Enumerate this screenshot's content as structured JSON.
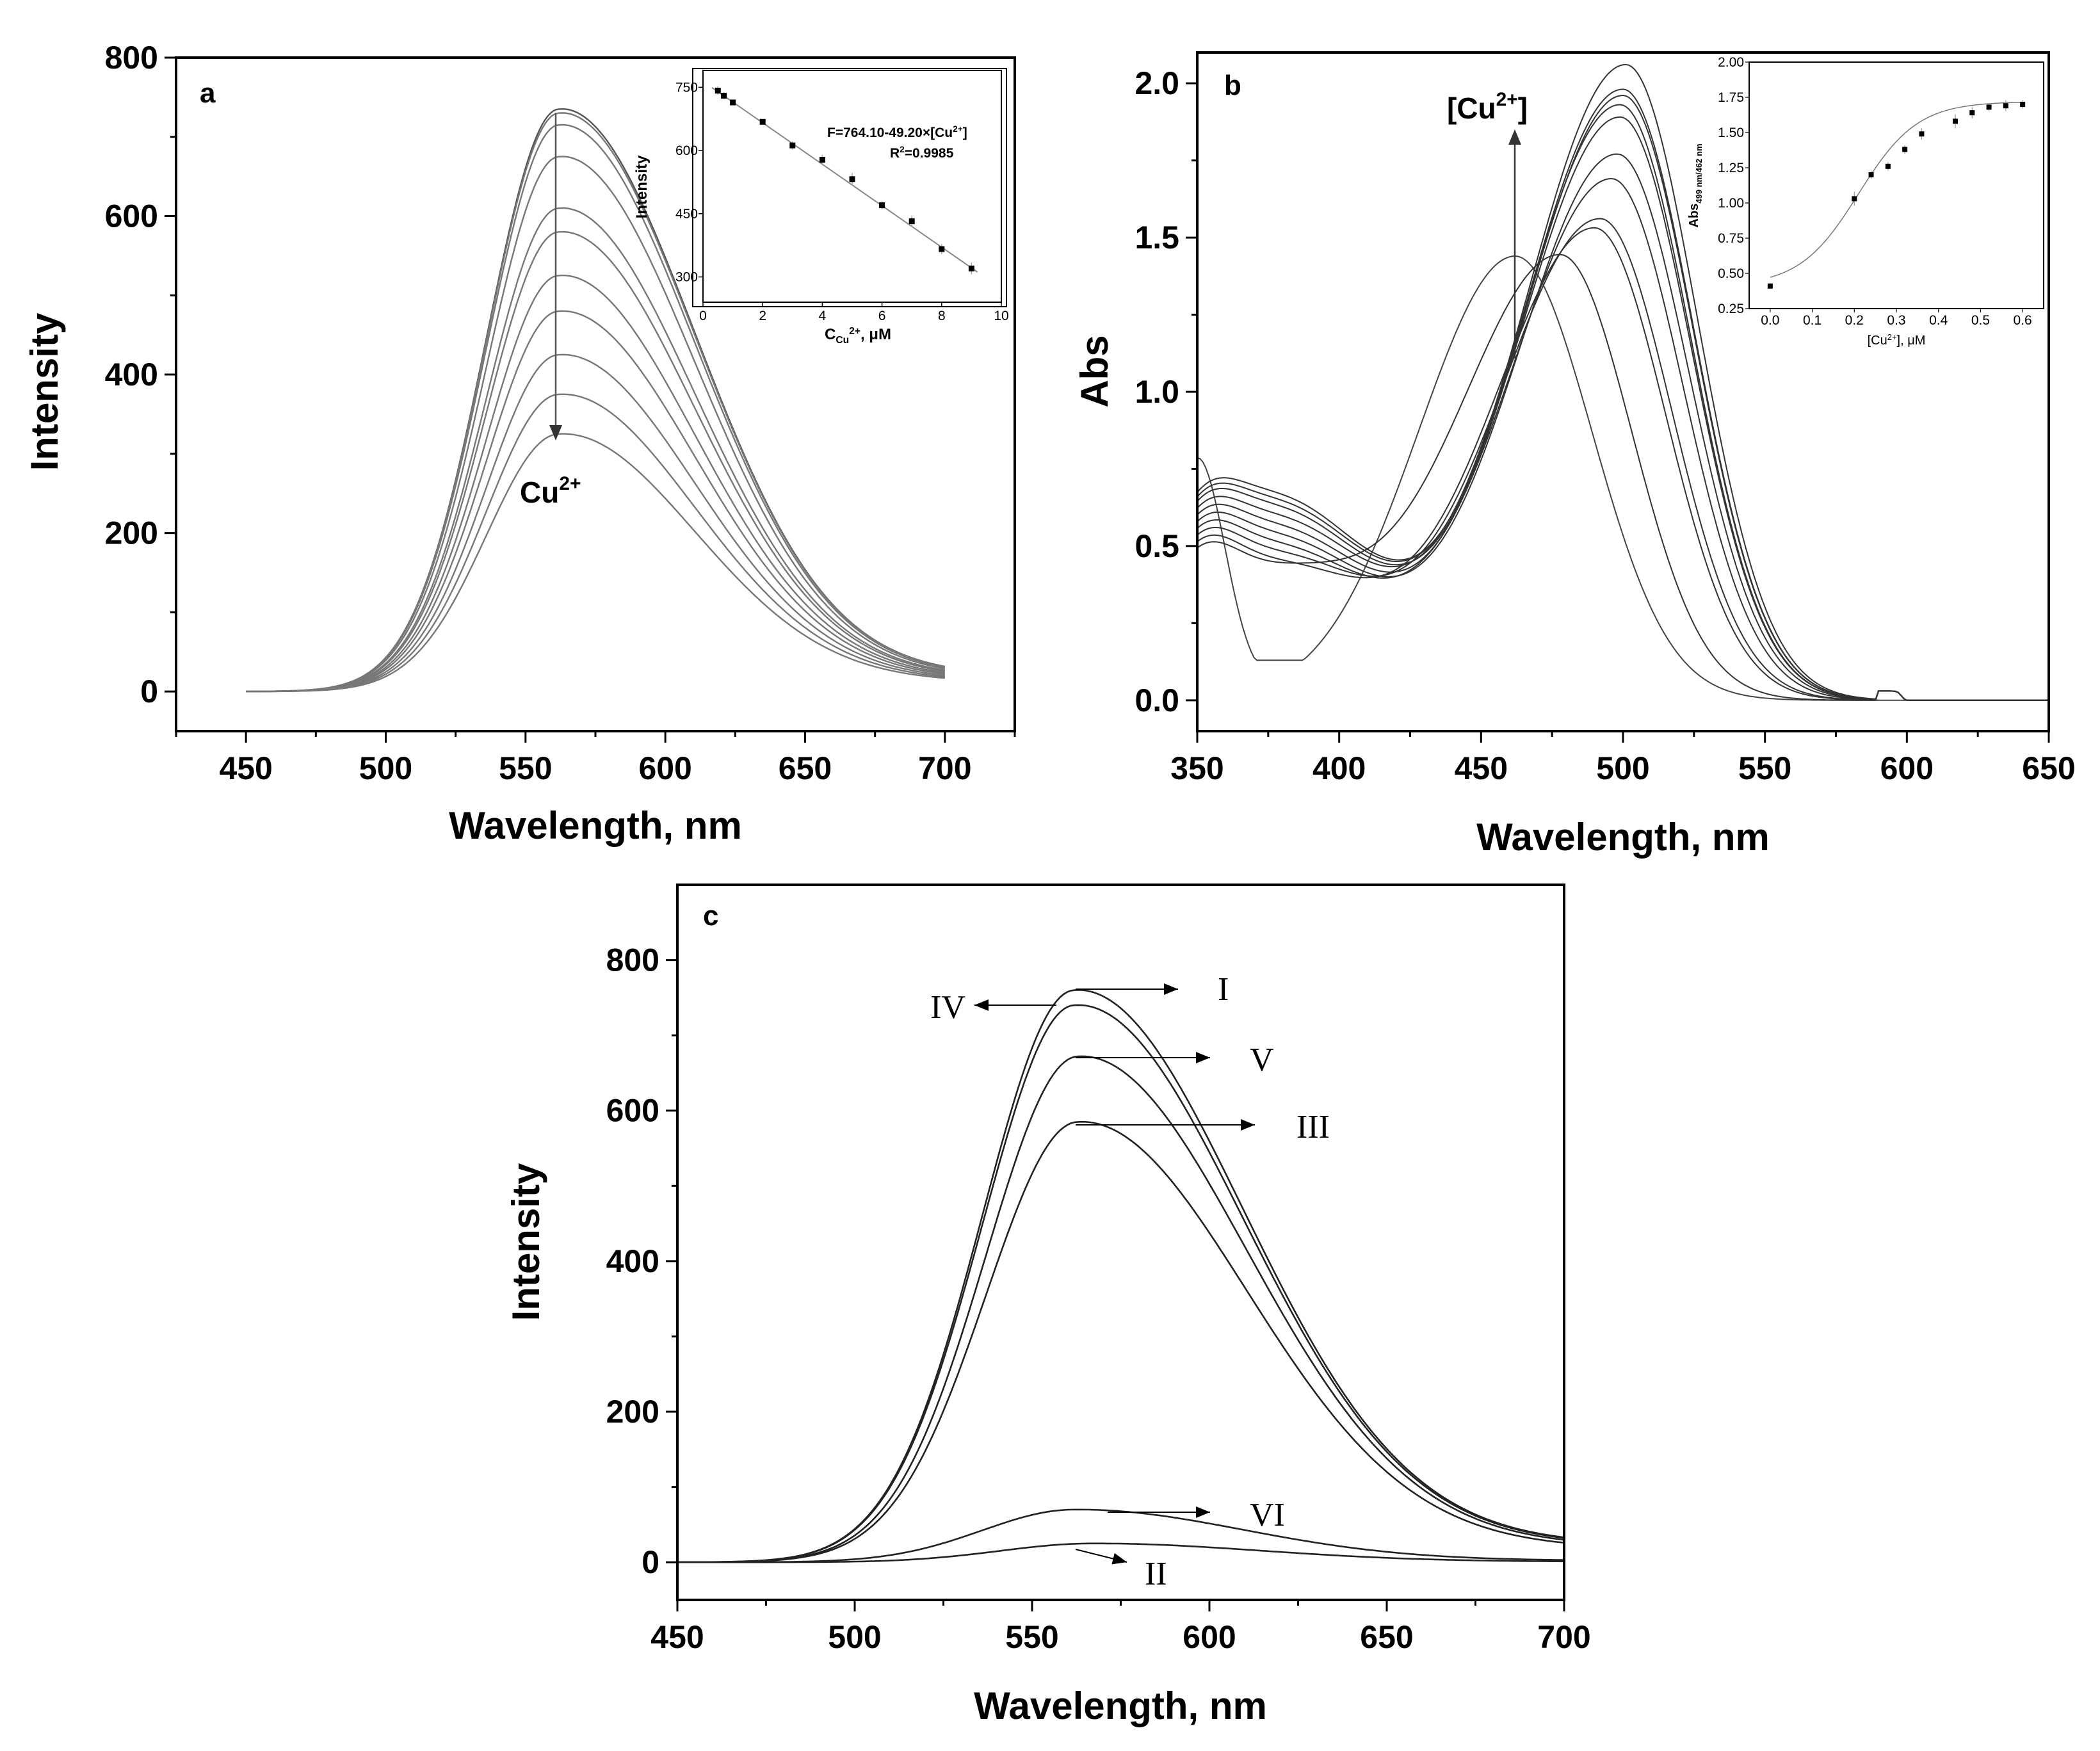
{
  "chart_data": [
    {
      "panel": "a",
      "type": "line",
      "panel_label": "a",
      "xlabel": "Wavelength, nm",
      "ylabel": "Intensity",
      "xlim": [
        425,
        725
      ],
      "ylim": [
        -50,
        800
      ],
      "xticks": [
        450,
        500,
        550,
        600,
        650,
        700
      ],
      "yticks": [
        0,
        200,
        400,
        600,
        800
      ],
      "annotation": {
        "text": "Cu",
        "sup": "2+",
        "direction": "decreasing"
      },
      "peak_wavelength": 562,
      "series_peaks": [
        735,
        730,
        715,
        675,
        610,
        580,
        525,
        480,
        425,
        375,
        325
      ],
      "series_tail_700": [
        22,
        22,
        21,
        20,
        19,
        18,
        17,
        16,
        15,
        14,
        13
      ],
      "inset": {
        "type": "scatter",
        "xlabel": "C",
        "xlabel_sub": "Cu",
        "xlabel_sup": "2+",
        "xlabel_unit": ", μM",
        "ylabel": "Intensity",
        "xlim": [
          0,
          10
        ],
        "ylim": [
          240,
          790
        ],
        "xticks": [
          0,
          2,
          4,
          6,
          8,
          10
        ],
        "yticks": [
          300,
          450,
          600,
          750
        ],
        "equation": "F=764.10-49.20×[Cu",
        "equation_sup": "2+",
        "equation_end": "]",
        "r2_label": "R",
        "r2_sup": "2",
        "r2_value": "=0.9985",
        "fit": {
          "slope": -49.2,
          "intercept": 764.1
        },
        "x": [
          0.5,
          0.7,
          1,
          2,
          3,
          4,
          5,
          6,
          7,
          8,
          9
        ],
        "y": [
          742,
          730,
          714,
          668,
          612,
          578,
          532,
          470,
          432,
          366,
          320
        ],
        "err": [
          10,
          8,
          6,
          6,
          10,
          12,
          15,
          10,
          14,
          12,
          14
        ]
      }
    },
    {
      "panel": "b",
      "type": "line",
      "panel_label": "b",
      "xlabel": "Wavelength, nm",
      "ylabel": "Abs",
      "xlim": [
        350,
        650
      ],
      "ylim": [
        -0.1,
        2.1
      ],
      "xticks": [
        350,
        400,
        450,
        500,
        550,
        600,
        650
      ],
      "yticks": [
        0.0,
        0.5,
        1.0,
        1.5,
        2.0
      ],
      "ytick_labels": [
        "0.0",
        "0.5",
        "1.0",
        "1.5",
        "2.0"
      ],
      "annotation": {
        "text": "[Cu",
        "sup": "2+",
        "end": "]",
        "direction": "increasing"
      },
      "free_dye": {
        "peak_wavelength": 462,
        "peak_abs": 1.44,
        "min_wavelength": 377,
        "min_abs": 0.15
      },
      "series": [
        {
          "peak_wavelength": 478,
          "peak_abs": 1.44,
          "abs_377": 0.4
        },
        {
          "peak_wavelength": 490,
          "peak_abs": 1.53,
          "abs_377": 0.43
        },
        {
          "peak_wavelength": 492,
          "peak_abs": 1.56,
          "abs_377": 0.46
        },
        {
          "peak_wavelength": 496,
          "peak_abs": 1.69,
          "abs_377": 0.49
        },
        {
          "peak_wavelength": 498,
          "peak_abs": 1.77,
          "abs_377": 0.52
        },
        {
          "peak_wavelength": 499,
          "peak_abs": 1.89,
          "abs_377": 0.55
        },
        {
          "peak_wavelength": 499,
          "peak_abs": 1.93,
          "abs_377": 0.58
        },
        {
          "peak_wavelength": 500,
          "peak_abs": 1.96,
          "abs_377": 0.61
        },
        {
          "peak_wavelength": 500,
          "peak_abs": 1.98,
          "abs_377": 0.63
        },
        {
          "peak_wavelength": 501,
          "peak_abs": 2.06,
          "abs_377": 0.65
        }
      ],
      "inset": {
        "type": "scatter",
        "xlabel": "[Cu",
        "xlabel_sup": "2+",
        "xlabel_end": "], μM",
        "ylabel": "Abs",
        "ylabel_sub": "499 nm/462 nm",
        "xlim": [
          -0.05,
          0.65
        ],
        "ylim": [
          0.25,
          2.0
        ],
        "xticks": [
          0.0,
          0.1,
          0.2,
          0.3,
          0.4,
          0.5,
          0.6
        ],
        "xtick_labels": [
          "0.0",
          "0.1",
          "0.2",
          "0.3",
          "0.4",
          "0.5",
          "0.6"
        ],
        "yticks": [
          0.25,
          0.5,
          0.75,
          1.0,
          1.25,
          1.5,
          1.75,
          2.0
        ],
        "ytick_labels": [
          "0.25",
          "0.50",
          "0.75",
          "1.00",
          "1.25",
          "1.50",
          "1.75",
          "2.00"
        ],
        "x": [
          0.0,
          0.2,
          0.24,
          0.28,
          0.32,
          0.36,
          0.44,
          0.48,
          0.52,
          0.56,
          0.6
        ],
        "y": [
          0.41,
          1.03,
          1.2,
          1.26,
          1.38,
          1.49,
          1.58,
          1.64,
          1.68,
          1.69,
          1.7
        ],
        "err": [
          0.02,
          0.05,
          0.03,
          0.03,
          0.03,
          0.04,
          0.05,
          0.04,
          0.03,
          0.04,
          0.03
        ]
      }
    },
    {
      "panel": "c",
      "type": "line",
      "panel_label": "c",
      "xlabel": "Wavelength, nm",
      "ylabel": "Intensity",
      "xlim": [
        450,
        700
      ],
      "ylim": [
        -50,
        900
      ],
      "xticks": [
        450,
        500,
        550,
        600,
        650,
        700
      ],
      "yticks": [
        0,
        200,
        400,
        600,
        800
      ],
      "series": [
        {
          "name": "I",
          "peak": 760,
          "peak_wavelength": 562
        },
        {
          "name": "IV",
          "peak": 740,
          "peak_wavelength": 562
        },
        {
          "name": "V",
          "peak": 672,
          "peak_wavelength": 563
        },
        {
          "name": "III",
          "peak": 585,
          "peak_wavelength": 563
        },
        {
          "name": "VI",
          "peak": 70,
          "peak_wavelength": 562
        },
        {
          "name": "II",
          "peak": 25,
          "peak_wavelength": 567
        }
      ],
      "labels": [
        "I",
        "IV",
        "V",
        "III",
        "VI",
        "II"
      ]
    }
  ]
}
